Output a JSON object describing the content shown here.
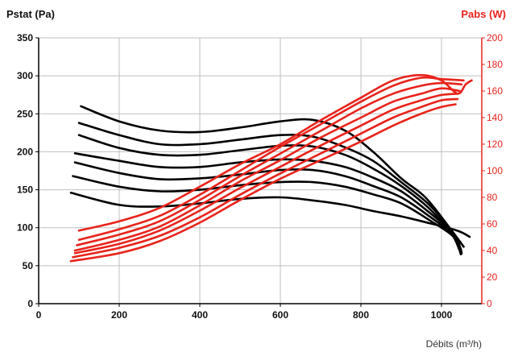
{
  "chart_data": {
    "type": "line",
    "ylabel_left": "Pstat (Pa)",
    "ylabel_right": "Pabs (W)",
    "xlabel": "Débits (m³/h)",
    "xlim": [
      0,
      1100
    ],
    "ylim_left": [
      0,
      350
    ],
    "ylim_right": [
      0,
      200
    ],
    "x_ticks": [
      "0",
      "200",
      "400",
      "600",
      "800",
      "1000"
    ],
    "y_left_ticks": [
      "0",
      "50",
      "100",
      "150",
      "200",
      "250",
      "300",
      "350"
    ],
    "y_right_ticks": [
      "0",
      "20",
      "40",
      "60",
      "80",
      "100",
      "120",
      "140",
      "160",
      "180",
      "200"
    ],
    "grid": true,
    "colors": {
      "pressure": "#000000",
      "power": "#e8231b",
      "grid": "#bfbfbf"
    },
    "pressure_series": [
      {
        "points": [
          [
            105,
            260
          ],
          [
            200,
            240
          ],
          [
            300,
            228
          ],
          [
            400,
            226
          ],
          [
            500,
            232
          ],
          [
            600,
            240
          ],
          [
            680,
            242
          ],
          [
            760,
            228
          ],
          [
            830,
            200
          ],
          [
            900,
            165
          ],
          [
            960,
            140
          ],
          [
            1020,
            100
          ],
          [
            1055,
            75
          ]
        ]
      },
      {
        "points": [
          [
            100,
            238
          ],
          [
            200,
            222
          ],
          [
            300,
            210
          ],
          [
            400,
            210
          ],
          [
            500,
            216
          ],
          [
            600,
            222
          ],
          [
            680,
            220
          ],
          [
            760,
            206
          ],
          [
            830,
            188
          ],
          [
            900,
            160
          ],
          [
            970,
            130
          ],
          [
            1025,
            95
          ],
          [
            1048,
            72
          ]
        ]
      },
      {
        "points": [
          [
            100,
            222
          ],
          [
            200,
            205
          ],
          [
            300,
            196
          ],
          [
            400,
            196
          ],
          [
            500,
            202
          ],
          [
            600,
            208
          ],
          [
            680,
            207
          ],
          [
            760,
            196
          ],
          [
            830,
            178
          ],
          [
            900,
            155
          ],
          [
            970,
            125
          ],
          [
            1025,
            92
          ],
          [
            1045,
            70
          ]
        ]
      },
      {
        "points": [
          [
            90,
            198
          ],
          [
            200,
            188
          ],
          [
            300,
            180
          ],
          [
            400,
            180
          ],
          [
            500,
            186
          ],
          [
            600,
            190
          ],
          [
            680,
            188
          ],
          [
            760,
            180
          ],
          [
            830,
            166
          ],
          [
            900,
            148
          ],
          [
            970,
            120
          ],
          [
            1030,
            92
          ],
          [
            1050,
            68
          ]
        ]
      },
      {
        "points": [
          [
            90,
            186
          ],
          [
            200,
            172
          ],
          [
            300,
            164
          ],
          [
            400,
            165
          ],
          [
            500,
            170
          ],
          [
            600,
            176
          ],
          [
            680,
            176
          ],
          [
            760,
            168
          ],
          [
            830,
            155
          ],
          [
            900,
            140
          ],
          [
            970,
            115
          ],
          [
            1030,
            90
          ],
          [
            1050,
            66
          ]
        ]
      },
      {
        "points": [
          [
            85,
            168
          ],
          [
            200,
            154
          ],
          [
            300,
            148
          ],
          [
            400,
            150
          ],
          [
            500,
            156
          ],
          [
            600,
            160
          ],
          [
            680,
            160
          ],
          [
            760,
            154
          ],
          [
            830,
            144
          ],
          [
            900,
            132
          ],
          [
            970,
            110
          ],
          [
            1030,
            88
          ],
          [
            1048,
            65
          ]
        ]
      },
      {
        "points": [
          [
            80,
            146
          ],
          [
            200,
            130
          ],
          [
            300,
            128
          ],
          [
            400,
            132
          ],
          [
            500,
            138
          ],
          [
            600,
            140
          ],
          [
            680,
            136
          ],
          [
            760,
            130
          ],
          [
            830,
            122
          ],
          [
            900,
            115
          ],
          [
            970,
            106
          ],
          [
            1040,
            96
          ],
          [
            1070,
            88
          ]
        ]
      }
    ],
    "power_series": [
      {
        "points": [
          [
            100,
            55
          ],
          [
            200,
            62
          ],
          [
            300,
            72
          ],
          [
            400,
            88
          ],
          [
            500,
            105
          ],
          [
            600,
            120
          ],
          [
            700,
            138
          ],
          [
            800,
            155
          ],
          [
            880,
            168
          ],
          [
            950,
            172
          ],
          [
            1000,
            168
          ],
          [
            1040,
            158
          ],
          [
            1060,
            165
          ],
          [
            1075,
            168
          ]
        ]
      },
      {
        "points": [
          [
            100,
            48
          ],
          [
            200,
            56
          ],
          [
            300,
            66
          ],
          [
            400,
            82
          ],
          [
            500,
            100
          ],
          [
            600,
            118
          ],
          [
            700,
            135
          ],
          [
            800,
            152
          ],
          [
            880,
            164
          ],
          [
            950,
            170
          ],
          [
            1000,
            169
          ],
          [
            1055,
            168
          ]
        ]
      },
      {
        "points": [
          [
            95,
            44
          ],
          [
            200,
            52
          ],
          [
            300,
            62
          ],
          [
            400,
            78
          ],
          [
            500,
            96
          ],
          [
            600,
            113
          ],
          [
            700,
            130
          ],
          [
            800,
            147
          ],
          [
            880,
            158
          ],
          [
            950,
            164
          ],
          [
            1000,
            166
          ],
          [
            1050,
            165
          ]
        ]
      },
      {
        "points": [
          [
            90,
            40
          ],
          [
            200,
            48
          ],
          [
            300,
            58
          ],
          [
            400,
            74
          ],
          [
            500,
            92
          ],
          [
            600,
            108
          ],
          [
            700,
            125
          ],
          [
            800,
            140
          ],
          [
            880,
            152
          ],
          [
            950,
            158
          ],
          [
            1000,
            162
          ],
          [
            1045,
            160
          ]
        ]
      },
      {
        "points": [
          [
            90,
            38
          ],
          [
            200,
            45
          ],
          [
            300,
            55
          ],
          [
            400,
            70
          ],
          [
            500,
            87
          ],
          [
            600,
            103
          ],
          [
            700,
            119
          ],
          [
            800,
            134
          ],
          [
            880,
            146
          ],
          [
            950,
            153
          ],
          [
            1000,
            157
          ],
          [
            1040,
            158
          ]
        ]
      },
      {
        "points": [
          [
            85,
            35
          ],
          [
            200,
            42
          ],
          [
            300,
            51
          ],
          [
            400,
            65
          ],
          [
            500,
            82
          ],
          [
            600,
            98
          ],
          [
            700,
            113
          ],
          [
            800,
            128
          ],
          [
            880,
            140
          ],
          [
            950,
            148
          ],
          [
            1000,
            153
          ],
          [
            1040,
            154
          ]
        ]
      },
      {
        "points": [
          [
            80,
            32
          ],
          [
            200,
            38
          ],
          [
            300,
            47
          ],
          [
            400,
            61
          ],
          [
            500,
            78
          ],
          [
            600,
            94
          ],
          [
            700,
            108
          ],
          [
            800,
            122
          ],
          [
            880,
            134
          ],
          [
            950,
            143
          ],
          [
            1000,
            148
          ],
          [
            1035,
            150
          ]
        ]
      }
    ]
  }
}
